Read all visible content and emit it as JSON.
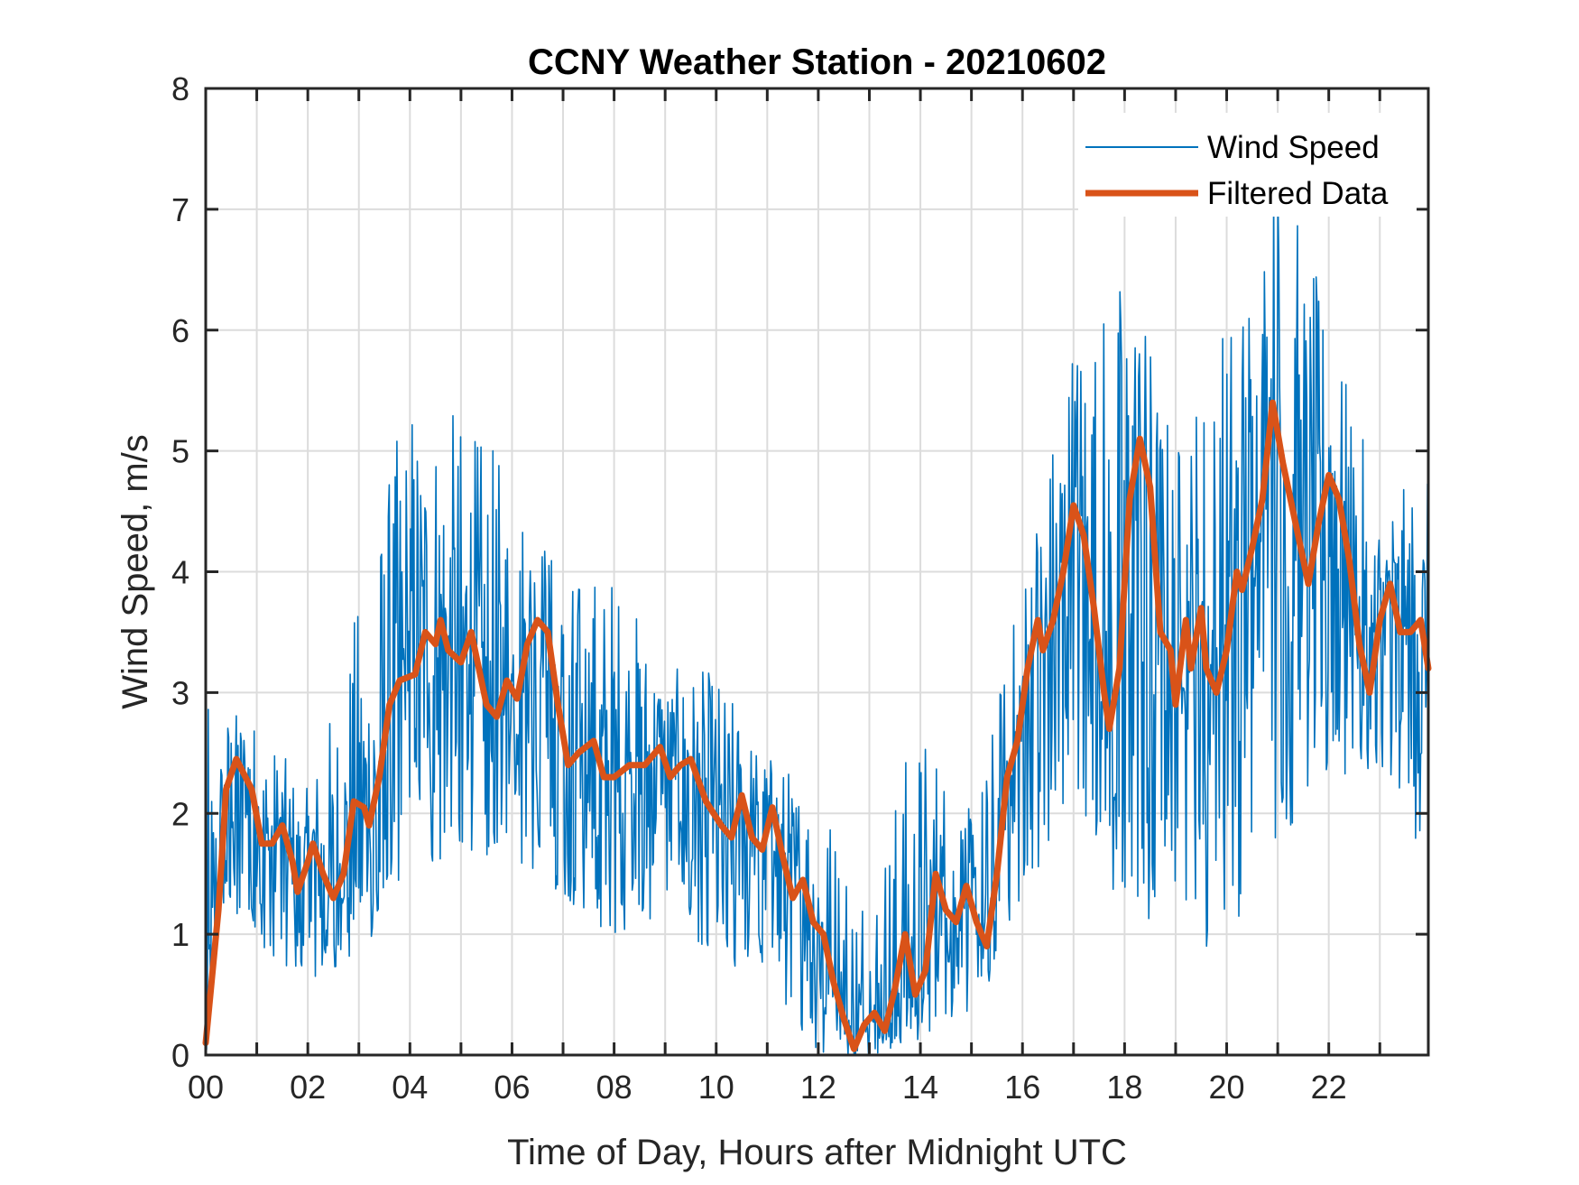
{
  "chart_data": {
    "type": "line",
    "title": "CCNY Weather Station - 20210602",
    "xlabel": "Time of Day, Hours after Midnight UTC",
    "ylabel": "Wind Speed, m/s",
    "xlim": [
      0,
      23.95
    ],
    "ylim": [
      0,
      8
    ],
    "grid": true,
    "legend_position": "top-right",
    "x_ticks": [
      0,
      2,
      4,
      6,
      8,
      10,
      12,
      14,
      16,
      18,
      20,
      22
    ],
    "x_tick_labels": [
      "00",
      "02",
      "04",
      "06",
      "08",
      "10",
      "12",
      "14",
      "16",
      "18",
      "20",
      "22"
    ],
    "x_minor_grid": [
      1,
      3,
      5,
      7,
      9,
      11,
      13,
      15,
      17,
      19,
      21,
      23
    ],
    "y_ticks": [
      0,
      1,
      2,
      3,
      4,
      5,
      6,
      7,
      8
    ],
    "y_tick_labels": [
      "0",
      "1",
      "2",
      "3",
      "4",
      "5",
      "6",
      "7",
      "8"
    ],
    "series": [
      {
        "name": "Wind Speed",
        "color": "#0072BD",
        "style": "thin-noisy",
        "description": "High-frequency raw samples fluctuating roughly ±1.5 m/s around the filtered trend; peak ~7.6 m/s near 21h; minima ~0 around 12.5–13.5h",
        "envelope": {
          "x": [
            0,
            1,
            2,
            3,
            4,
            5,
            6,
            7,
            8,
            9,
            10,
            11,
            12,
            13,
            14,
            15,
            16,
            17,
            18,
            19,
            20,
            21,
            22,
            23,
            23.95
          ],
          "max": [
            2.9,
            2.8,
            2.2,
            3.8,
            5.6,
            5.3,
            4.9,
            4.0,
            4.1,
            3.2,
            3.2,
            2.5,
            2.3,
            1.6,
            2.9,
            2.0,
            4.0,
            6.1,
            6.7,
            5.2,
            6.3,
            7.6,
            6.1,
            4.6,
            4.8
          ],
          "min": [
            1.4,
            0.9,
            0.6,
            0.8,
            1.5,
            1.7,
            1.6,
            1.3,
            0.9,
            1.2,
            0.8,
            0.6,
            0.0,
            0.0,
            0.1,
            0.2,
            1.3,
            2.0,
            1.1,
            0.9,
            0.9,
            1.7,
            2.2,
            2.4,
            1.5
          ]
        }
      },
      {
        "name": "Filtered Data",
        "color": "#D95319",
        "style": "thick",
        "x": [
          0,
          0.25,
          0.4,
          0.6,
          0.9,
          1.1,
          1.3,
          1.5,
          1.7,
          1.8,
          2.0,
          2.1,
          2.3,
          2.5,
          2.7,
          2.9,
          3.1,
          3.2,
          3.4,
          3.6,
          3.8,
          4.1,
          4.3,
          4.5,
          4.6,
          4.75,
          5.0,
          5.2,
          5.5,
          5.7,
          5.9,
          6.1,
          6.3,
          6.5,
          6.7,
          6.9,
          7.1,
          7.3,
          7.6,
          7.8,
          8.0,
          8.3,
          8.6,
          8.9,
          9.1,
          9.3,
          9.5,
          9.8,
          10.1,
          10.3,
          10.5,
          10.7,
          10.9,
          11.1,
          11.3,
          11.5,
          11.7,
          11.9,
          12.1,
          12.3,
          12.5,
          12.7,
          12.9,
          13.1,
          13.3,
          13.5,
          13.7,
          13.9,
          14.1,
          14.3,
          14.5,
          14.7,
          14.9,
          15.1,
          15.3,
          15.5,
          15.7,
          15.9,
          16.1,
          16.3,
          16.4,
          16.6,
          16.8,
          17.0,
          17.2,
          17.4,
          17.6,
          17.7,
          17.9,
          18.1,
          18.3,
          18.5,
          18.7,
          18.9,
          19.0,
          19.2,
          19.3,
          19.5,
          19.6,
          19.8,
          20.0,
          20.2,
          20.3,
          20.5,
          20.7,
          20.9,
          21.1,
          21.3,
          21.6,
          21.8,
          22.0,
          22.2,
          22.4,
          22.6,
          22.8,
          23.0,
          23.2,
          23.4,
          23.6,
          23.8,
          23.95
        ],
        "y": [
          0.1,
          1.2,
          2.2,
          2.45,
          2.2,
          1.75,
          1.75,
          1.9,
          1.6,
          1.35,
          1.6,
          1.75,
          1.5,
          1.3,
          1.5,
          2.1,
          2.05,
          1.9,
          2.3,
          2.9,
          3.1,
          3.15,
          3.5,
          3.4,
          3.6,
          3.35,
          3.25,
          3.5,
          2.9,
          2.8,
          3.1,
          2.95,
          3.4,
          3.6,
          3.5,
          2.9,
          2.4,
          2.5,
          2.6,
          2.3,
          2.3,
          2.4,
          2.4,
          2.55,
          2.3,
          2.4,
          2.45,
          2.1,
          1.9,
          1.8,
          2.15,
          1.8,
          1.7,
          2.05,
          1.65,
          1.3,
          1.45,
          1.1,
          1.0,
          0.6,
          0.3,
          0.05,
          0.25,
          0.35,
          0.2,
          0.55,
          1.0,
          0.5,
          0.7,
          1.5,
          1.2,
          1.1,
          1.4,
          1.1,
          0.9,
          1.5,
          2.3,
          2.6,
          3.2,
          3.6,
          3.35,
          3.6,
          4.0,
          4.55,
          4.3,
          3.7,
          3.0,
          2.7,
          3.2,
          4.6,
          5.1,
          4.7,
          3.5,
          3.35,
          2.9,
          3.6,
          3.2,
          3.7,
          3.2,
          3.0,
          3.35,
          4.0,
          3.85,
          4.2,
          4.6,
          5.4,
          4.9,
          4.5,
          3.9,
          4.4,
          4.8,
          4.6,
          4.1,
          3.4,
          3.0,
          3.6,
          3.9,
          3.5,
          3.5,
          3.6,
          3.2
        ]
      }
    ]
  }
}
